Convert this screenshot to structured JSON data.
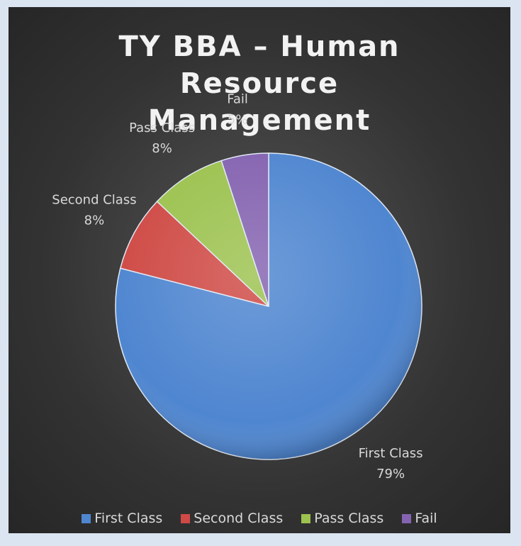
{
  "chart_data": {
    "type": "pie",
    "title": "TY BBA – Human Resource Management",
    "categories": [
      "First Class",
      "Second Class",
      "Pass Class",
      "Fail"
    ],
    "values": [
      79,
      8,
      8,
      5
    ],
    "value_labels": [
      "79%",
      "8%",
      "8%",
      "5%"
    ],
    "colors": [
      "#4f86d0",
      "#cf4a45",
      "#9cc24f",
      "#8463b0"
    ],
    "legend": "bottom"
  }
}
